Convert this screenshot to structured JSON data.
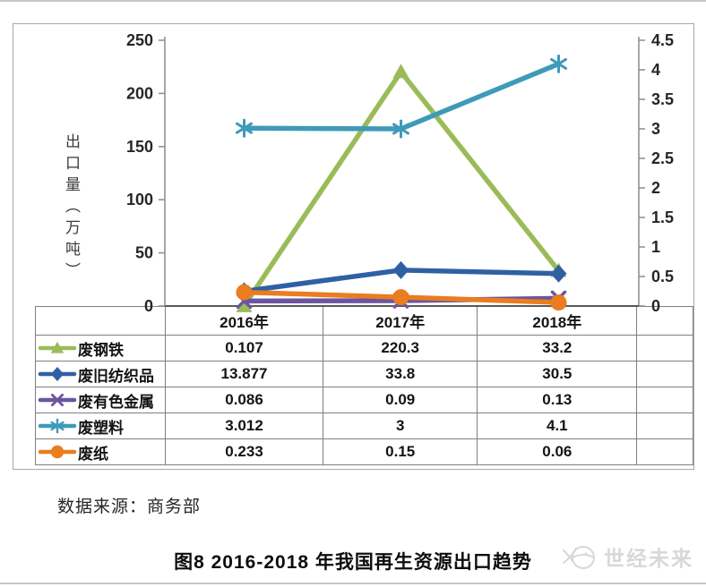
{
  "chart_data": {
    "type": "line",
    "title": "图8 2016-2018 年我国再生资源出口趋势",
    "categories": [
      "2016年",
      "2017年",
      "2018年"
    ],
    "series": [
      {
        "id": "scrap-steel",
        "name": "废钢铁",
        "marker": "triangle",
        "color": "#9BBB59",
        "axis": "left",
        "values": [
          0.107,
          220.3,
          33.2
        ],
        "cells": [
          "0.107",
          "220.3",
          "33.2"
        ]
      },
      {
        "id": "waste-textiles",
        "name": "废旧纺织品",
        "marker": "diamond",
        "color": "#3060A4",
        "axis": "left",
        "values": [
          13.877,
          33.8,
          30.5
        ],
        "cells": [
          "13.877",
          "33.8",
          "30.5"
        ]
      },
      {
        "id": "waste-nonferrous-metals",
        "name": "废有色金属",
        "marker": "x",
        "color": "#6C55A0",
        "axis": "right",
        "values": [
          0.086,
          0.09,
          0.13
        ],
        "cells": [
          "0.086",
          "0.09",
          "0.13"
        ]
      },
      {
        "id": "waste-plastics",
        "name": "废塑料",
        "marker": "asterisk",
        "color": "#3E9AB8",
        "axis": "right",
        "values": [
          3.012,
          3,
          4.1
        ],
        "cells": [
          "3.012",
          "3",
          "4.1"
        ]
      },
      {
        "id": "waste-paper",
        "name": "废纸",
        "marker": "circle",
        "color": "#E97D1F",
        "axis": "right",
        "values": [
          0.233,
          0.15,
          0.06
        ],
        "cells": [
          "0.233",
          "0.15",
          "0.06"
        ]
      }
    ],
    "left_axis": {
      "label": "出口量（万吨）",
      "min": 0,
      "max": 250,
      "ticks": [
        250,
        200,
        150,
        100,
        50,
        0
      ]
    },
    "right_axis": {
      "min": 0,
      "max": 4.5,
      "ticks": [
        4.5,
        4,
        3.5,
        3,
        2.5,
        2,
        1.5,
        1,
        0.5,
        0
      ]
    },
    "legend_position": "table-left-column",
    "grid": false,
    "data_table_shown": true
  },
  "source_note": "数据来源：商务部",
  "caption": "图8 2016-2018 年我国再生资源出口趋势",
  "watermark": {
    "text": "世经未来"
  }
}
